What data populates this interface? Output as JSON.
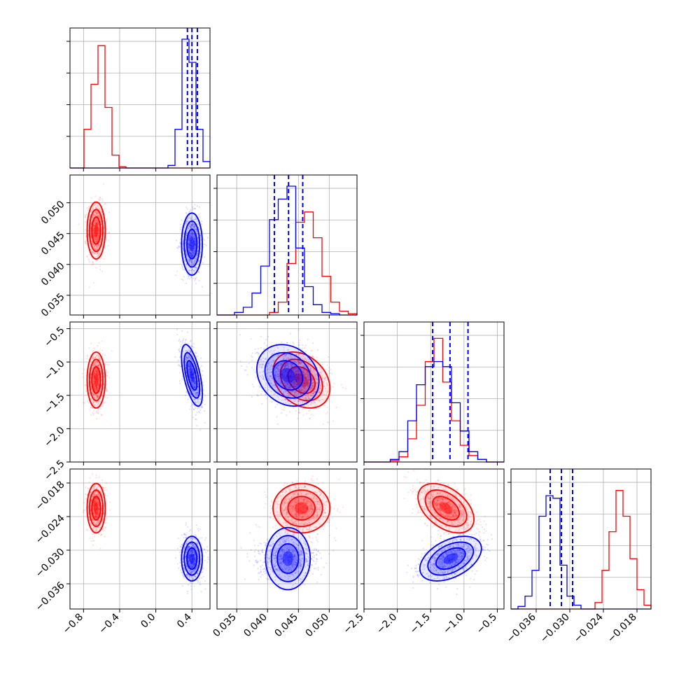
{
  "chart_data": {
    "type": "corner",
    "series": [
      {
        "name": "red",
        "color": "#ff0000",
        "means": [
          -0.66,
          0.0455,
          -1.27,
          -0.0225
        ],
        "sds": [
          0.048,
          0.0022,
          0.2,
          0.0021
        ],
        "corr": {
          "2-3": -0.45,
          "1-2": -0.3,
          "1-3": 0.0,
          "0-1": 0.0,
          "0-2": 0.0,
          "0-3": 0.0
        }
      },
      {
        "name": "blue",
        "color": "#0000ff",
        "means": [
          0.4,
          0.0433,
          -1.2,
          -0.0315
        ],
        "sds": [
          0.055,
          0.0024,
          0.22,
          0.0019
        ],
        "corr": {
          "0-2": -0.6,
          "2-3": 0.45,
          "1-2": -0.2,
          "0-1": 0.0,
          "0-3": 0.0,
          "1-3": 0.0
        }
      }
    ],
    "parameters": [
      {
        "range": [
          -0.95,
          0.6
        ],
        "ticks": [
          "−0.8",
          "−0.4",
          "0.0",
          "0.4"
        ],
        "tick_values": [
          -0.8,
          -0.4,
          0.0,
          0.4
        ]
      },
      {
        "range": [
          0.0318,
          0.0545
        ],
        "ticks": [
          "0.035",
          "0.040",
          "0.045",
          "0.050"
        ],
        "tick_values": [
          0.035,
          0.04,
          0.045,
          0.05
        ]
      },
      {
        "range": [
          -2.5,
          -0.4
        ],
        "ticks": [
          "−2.5",
          "−2.0",
          "−1.5",
          "−1.0",
          "−0.5"
        ],
        "tick_values": [
          -2.5,
          -2.0,
          -1.5,
          -1.0,
          -0.5
        ]
      },
      {
        "range": [
          -0.0405,
          -0.0155
        ],
        "ticks": [
          "−0.036",
          "−0.030",
          "−0.024",
          "−0.018"
        ],
        "tick_values": [
          -0.036,
          -0.03,
          -0.024,
          -0.018
        ]
      }
    ],
    "quantiles": {
      "series": "blue",
      "values": [
        [
          0.35,
          0.4,
          0.46
        ],
        [
          0.0411,
          0.0434,
          0.0457
        ],
        [
          -1.47,
          -1.21,
          -0.94
        ],
        [
          -0.0335,
          -0.0315,
          -0.0295
        ]
      ]
    },
    "histograms": {
      "red": [
        [
          0,
          0,
          0.3,
          0.65,
          0.95,
          0.47,
          0.1,
          0.01,
          0,
          0,
          0,
          0,
          0,
          0,
          0,
          0,
          0,
          0,
          0,
          0
        ],
        [
          0,
          0,
          0,
          0,
          0,
          0,
          0.02,
          0.1,
          0.4,
          0.72,
          0.8,
          0.6,
          0.3,
          0.1,
          0.03,
          0.01
        ],
        [
          0,
          0,
          0,
          0.01,
          0.04,
          0.18,
          0.44,
          0.78,
          0.96,
          0.62,
          0.32,
          0.13,
          0.05,
          0.02,
          0,
          0
        ],
        [
          0,
          0,
          0,
          0,
          0,
          0,
          0,
          0,
          0,
          0,
          0,
          0,
          0.05,
          0.3,
          0.6,
          0.92,
          0.72,
          0.39,
          0.15,
          0.03
        ]
      ],
      "blue": [
        [
          0,
          0,
          0,
          0,
          0,
          0,
          0,
          0,
          0,
          0,
          0,
          0,
          0,
          0,
          0.02,
          0.3,
          1.0,
          0.82,
          0.3,
          0.05
        ],
        [
          0,
          0,
          0.02,
          0.06,
          0.17,
          0.38,
          0.74,
          0.9,
          1.0,
          0.52,
          0.22,
          0.08,
          0.02,
          0.01,
          0,
          0
        ],
        [
          0,
          0,
          0,
          0.02,
          0.08,
          0.32,
          0.6,
          0.74,
          0.78,
          0.74,
          0.46,
          0.24,
          0.08,
          0.02,
          0,
          0
        ],
        [
          0,
          0.02,
          0.1,
          0.3,
          0.72,
          0.88,
          0.86,
          0.34,
          0.1,
          0.03,
          0,
          0,
          0,
          0,
          0,
          0,
          0,
          0,
          0,
          0
        ]
      ]
    }
  }
}
